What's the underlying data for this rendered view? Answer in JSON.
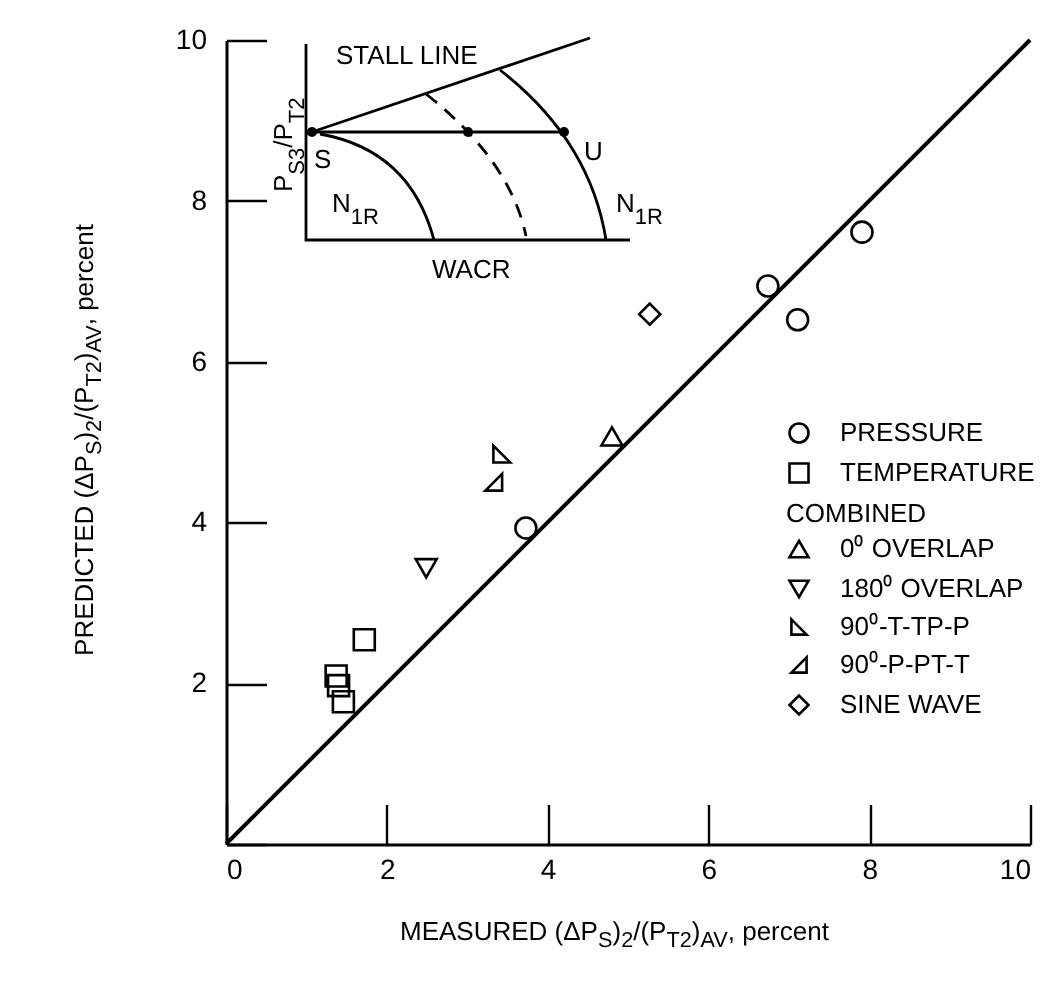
{
  "chart_data": {
    "type": "scatter",
    "xlabel": "MEASURED (ΔP$_{S}$)$_{2}$/(P$_{T2}$)$_{AV}$, percent",
    "ylabel": "PREDICTED (ΔP$_{S}$)$_{2}$/(P$_{T2}$)$_{AV}$, percent",
    "annotations": [
      "COMBINED",
      "STALL LINE",
      "P$_{S3}$/P$_{T2}$",
      "S",
      "U",
      "N$_{1R}$",
      "N$_{1R}$",
      "WACR"
    ],
    "series": [
      {
        "name": "PRESSURE",
        "color": "#000000",
        "marker": "circle",
        "x": [
          3.73,
          6.74,
          7.11,
          7.91
        ],
        "values": [
          3.93,
          6.94,
          6.52,
          7.61
        ]
      },
      {
        "name": "TEMPERATURE",
        "color": "#000000",
        "marker": "square",
        "x": [
          1.37,
          1.4,
          1.46,
          1.72
        ],
        "values": [
          2.09,
          1.97,
          1.77,
          2.54
        ]
      },
      {
        "name": "0⁰ OVERLAP",
        "color": "#000000",
        "marker": "triangle",
        "x": [
          4.8
        ],
        "values": [
          5.07
        ]
      },
      {
        "name": "180⁰ OVERLAP",
        "color": "#000000",
        "marker": "triangle-down",
        "x": [
          2.49
        ],
        "values": [
          3.43
        ]
      },
      {
        "name": "90⁰-T-TP-P",
        "color": "#000000",
        "marker": "triangle-left",
        "x": [
          3.43
        ],
        "values": [
          4.85
        ]
      },
      {
        "name": "90⁰-P-PT-T",
        "color": "#000000",
        "marker": "triangle-right",
        "x": [
          3.33
        ],
        "values": [
          4.5
        ]
      },
      {
        "name": "SINE WAVE",
        "color": "#000000",
        "marker": "diamond",
        "x": [
          5.27
        ],
        "values": [
          6.59
        ]
      },
      {
        "type": "line",
        "color": "#000000",
        "line_style": "solid",
        "x": [
          0,
          10
        ],
        "values": [
          0,
          10
        ]
      }
    ],
    "xlim": [
      0,
      10
    ],
    "ylim": [
      0,
      10
    ],
    "xticks": [
      0,
      2,
      4,
      6,
      8,
      10
    ],
    "yticks": [
      {
        "value": 0,
        "label": null
      },
      2,
      4,
      6,
      8,
      10
    ],
    "grid": false,
    "legend": "right"
  }
}
